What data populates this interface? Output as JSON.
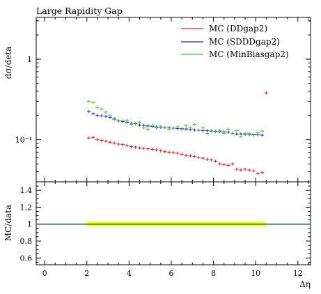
{
  "chart_data": [
    {
      "type": "scatter",
      "panel": "main",
      "title": "Large Rapidity Gap",
      "ylabel": "dσ/deta",
      "xlabel": "",
      "yscale": "log",
      "xlim": [
        -0.4,
        12.6
      ],
      "ylim": [
        0.03,
        3.3
      ],
      "ytick_labels": [
        {
          "value": 0.1,
          "label": "10⁻¹"
        },
        {
          "value": 1,
          "label": "1"
        }
      ],
      "legend_position": "top-right",
      "series": [
        {
          "name": "MC (DDgap2)",
          "color": "#e8141c",
          "x": [
            2.1,
            2.3,
            2.5,
            2.7,
            2.9,
            3.1,
            3.3,
            3.5,
            3.7,
            3.9,
            4.1,
            4.3,
            4.5,
            4.7,
            4.9,
            5.1,
            5.3,
            5.5,
            5.7,
            5.9,
            6.1,
            6.3,
            6.5,
            6.7,
            6.9,
            7.1,
            7.3,
            7.5,
            7.7,
            7.9,
            8.1,
            8.3,
            8.5,
            8.7,
            8.9,
            9.1,
            9.3,
            9.5,
            9.7,
            9.9,
            10.1,
            10.3,
            10.5
          ],
          "y": [
            0.105,
            0.107,
            0.1,
            0.098,
            0.096,
            0.093,
            0.091,
            0.088,
            0.087,
            0.085,
            0.082,
            0.081,
            0.079,
            0.078,
            0.077,
            0.076,
            0.075,
            0.073,
            0.071,
            0.07,
            0.069,
            0.068,
            0.066,
            0.064,
            0.063,
            0.062,
            0.06,
            0.059,
            0.057,
            0.056,
            0.054,
            0.05,
            0.049,
            0.048,
            0.05,
            0.043,
            0.042,
            0.043,
            0.042,
            0.041,
            0.038,
            0.039,
            0.38
          ]
        },
        {
          "name": "MC (SDDDgap2)",
          "color": "#1c1ce8",
          "x": [
            2.1,
            2.3,
            2.5,
            2.7,
            2.9,
            3.1,
            3.3,
            3.5,
            3.7,
            3.9,
            4.1,
            4.3,
            4.5,
            4.7,
            4.9,
            5.1,
            5.3,
            5.5,
            5.7,
            5.9,
            6.1,
            6.3,
            6.5,
            6.7,
            6.9,
            7.1,
            7.3,
            7.5,
            7.7,
            7.9,
            8.1,
            8.3,
            8.5,
            8.7,
            8.9,
            9.1,
            9.3,
            9.5,
            9.7,
            9.9,
            10.1,
            10.3
          ],
          "y": [
            0.225,
            0.21,
            0.2,
            0.198,
            0.195,
            0.19,
            0.18,
            0.172,
            0.168,
            0.165,
            0.16,
            0.158,
            0.152,
            0.15,
            0.148,
            0.146,
            0.144,
            0.143,
            0.141,
            0.14,
            0.139,
            0.138,
            0.137,
            0.136,
            0.134,
            0.132,
            0.131,
            0.13,
            0.129,
            0.128,
            0.127,
            0.126,
            0.125,
            0.124,
            0.12,
            0.118,
            0.118,
            0.117,
            0.116,
            0.115,
            0.115,
            0.114
          ]
        },
        {
          "name": "MC (MinBiasgap2)",
          "color": "#37d22a",
          "x": [
            2.1,
            2.3,
            2.5,
            2.7,
            2.9,
            3.1,
            3.3,
            3.5,
            3.7,
            3.9,
            4.1,
            4.3,
            4.5,
            4.7,
            4.9,
            5.1,
            5.3,
            5.5,
            5.7,
            5.9,
            6.1,
            6.3,
            6.5,
            6.7,
            6.9,
            7.1,
            7.3,
            7.5,
            7.7,
            7.9,
            8.1,
            8.3,
            8.5,
            8.7,
            8.9,
            9.1,
            9.3,
            9.5,
            9.7,
            9.9,
            10.1,
            10.3
          ],
          "y": [
            0.3,
            0.29,
            0.25,
            0.24,
            0.22,
            0.2,
            0.185,
            0.17,
            0.172,
            0.175,
            0.155,
            0.16,
            0.165,
            0.14,
            0.135,
            0.15,
            0.14,
            0.145,
            0.14,
            0.135,
            0.14,
            0.145,
            0.135,
            0.15,
            0.14,
            0.155,
            0.13,
            0.14,
            0.12,
            0.13,
            0.125,
            0.13,
            0.12,
            0.135,
            0.12,
            0.13,
            0.11,
            0.12,
            0.12,
            0.118,
            0.122,
            0.128
          ]
        }
      ]
    },
    {
      "type": "line",
      "panel": "ratio",
      "ylabel": "MC/data",
      "xlabel": "Δη",
      "xlim": [
        -0.4,
        12.6
      ],
      "ylim": [
        0.52,
        1.5
      ],
      "yticks": [
        0.6,
        0.8,
        1,
        1.2,
        1.4
      ],
      "ytick_labels": [
        "0.6",
        "0.8",
        "1",
        "1.2",
        "1.4"
      ],
      "xticks": [
        0,
        2,
        4,
        6,
        8,
        10,
        12
      ],
      "xtick_labels": [
        "0",
        "2",
        "4",
        "6",
        "8",
        "10",
        "12"
      ],
      "reference": {
        "y": 1,
        "color": "#208040"
      },
      "band": {
        "x_from": 2.0,
        "x_to": 10.5,
        "y_low": 0.985,
        "y_high": 1.015,
        "color": "#ffff00"
      }
    }
  ]
}
